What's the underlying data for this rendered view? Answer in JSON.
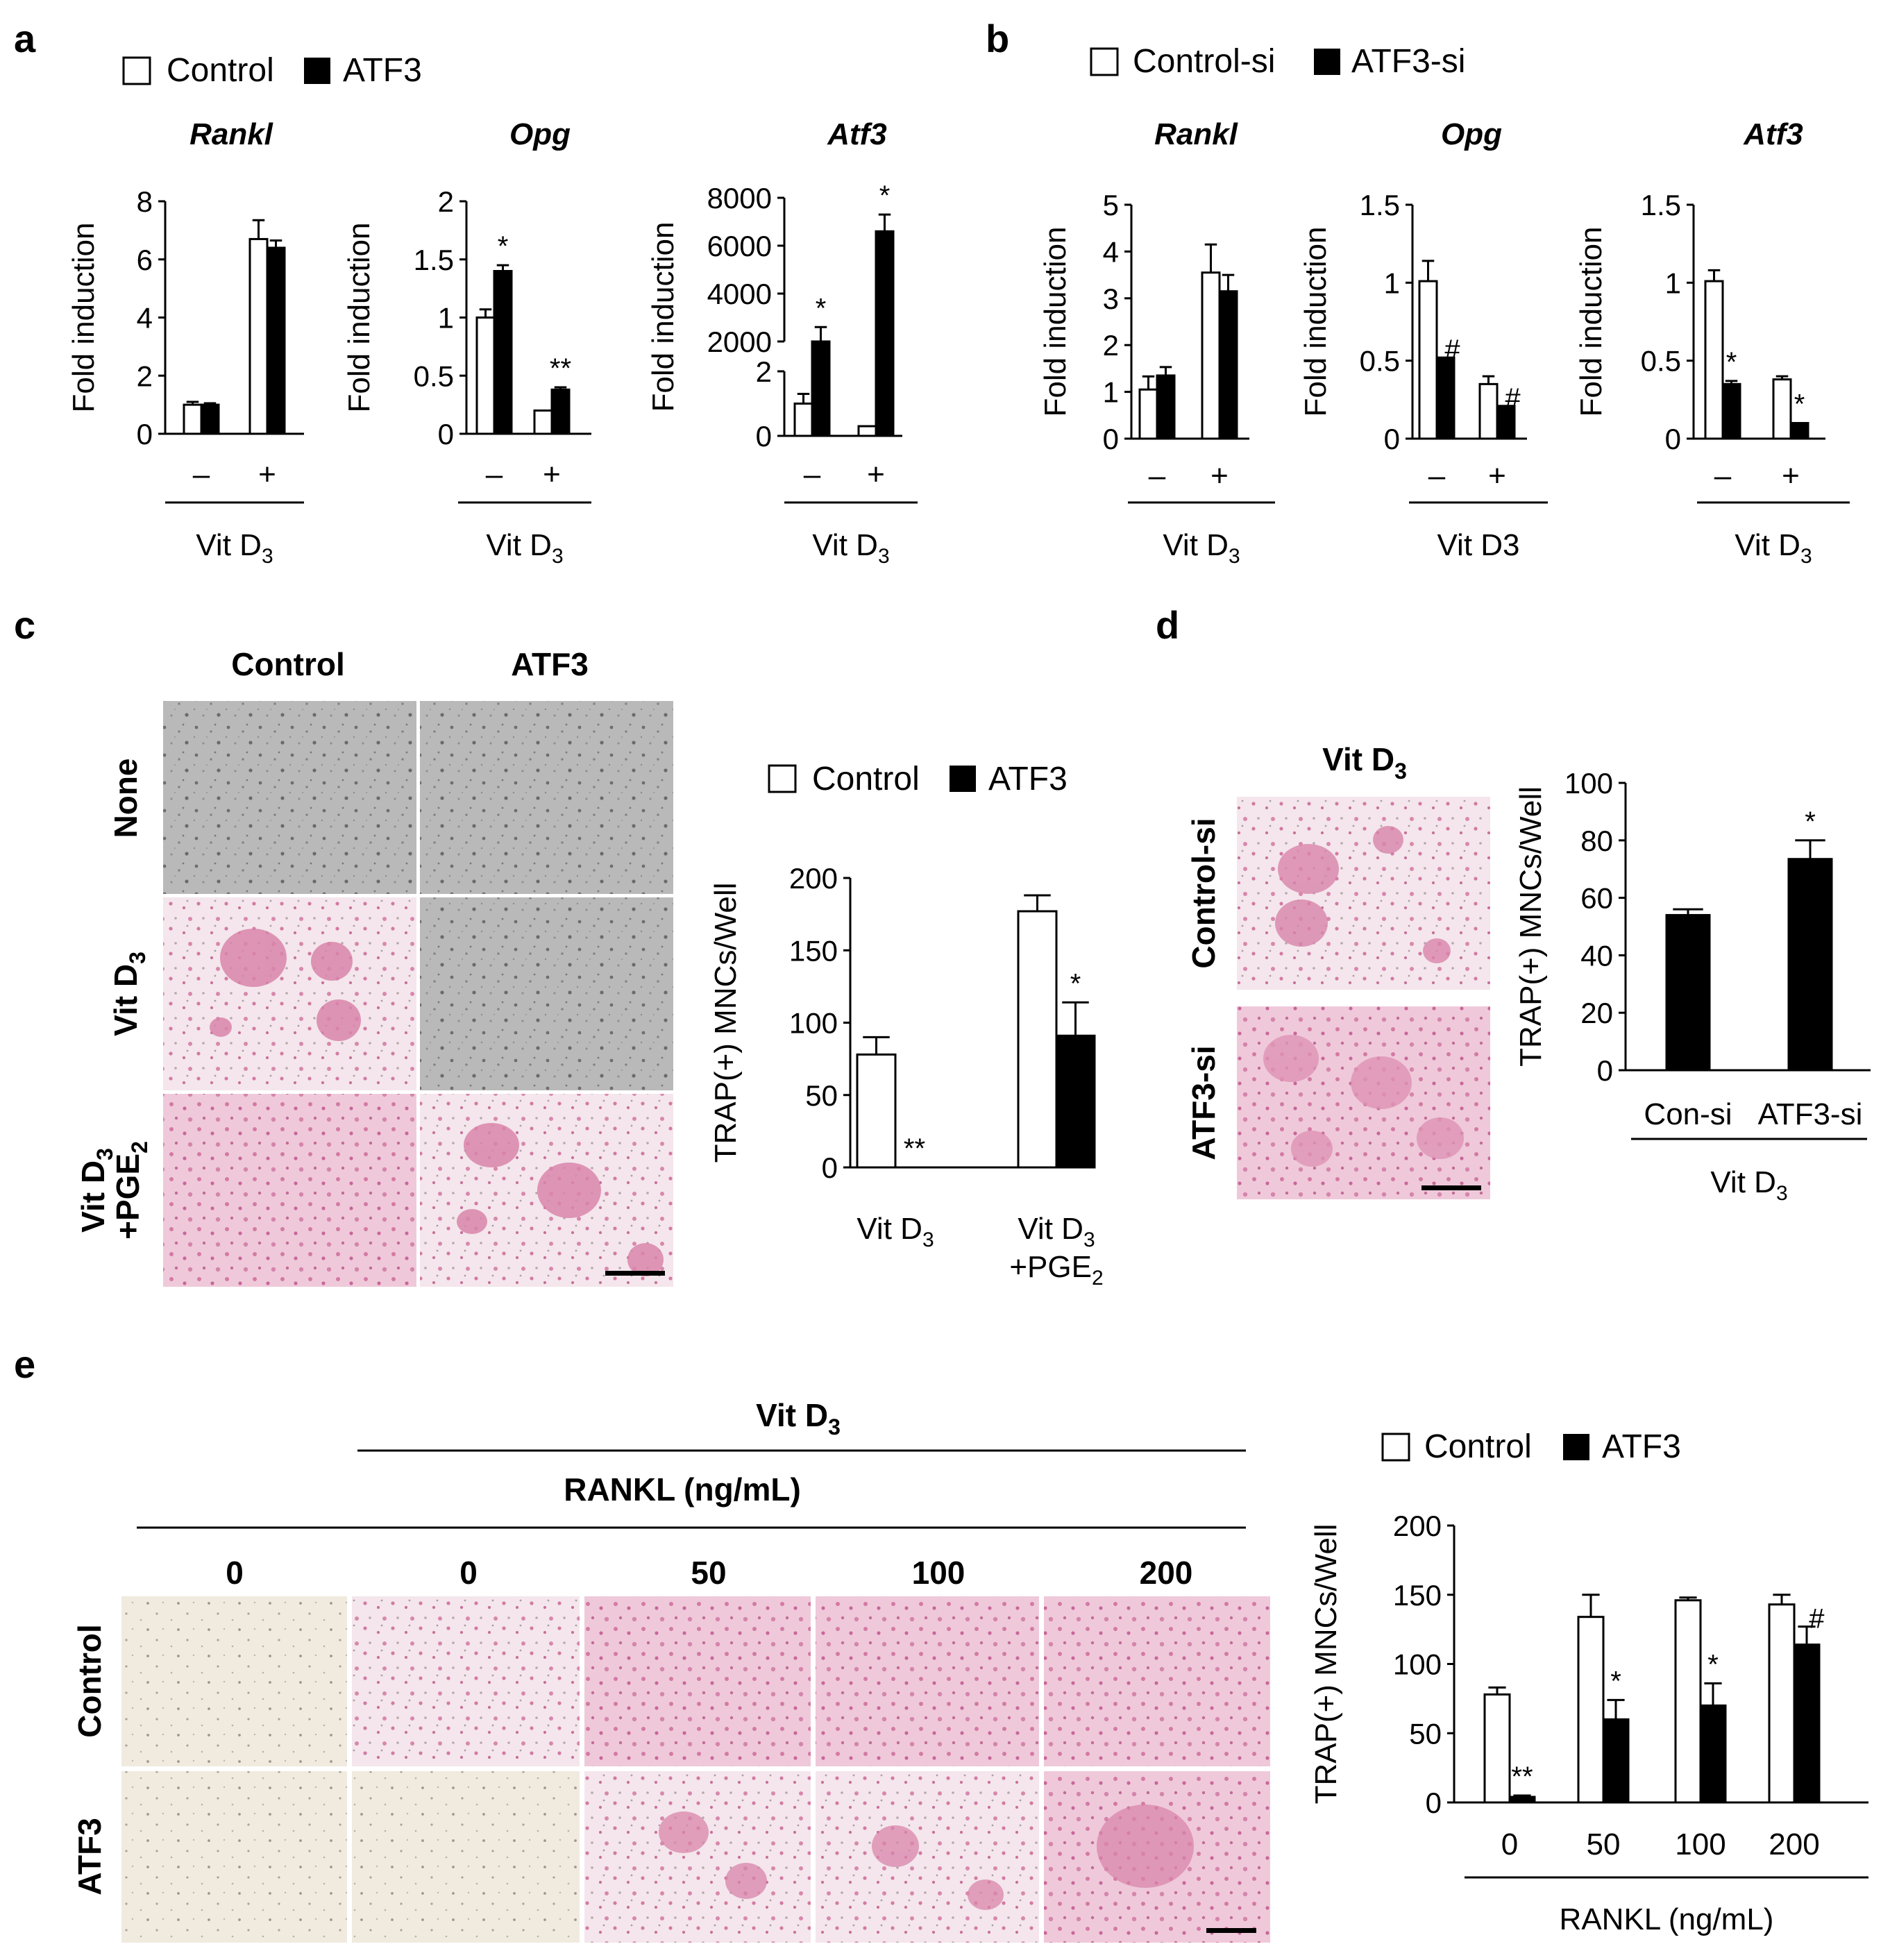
{
  "panels": {
    "a": {
      "label": "a",
      "legend": [
        {
          "name": "Control",
          "fill": "#ffffff"
        },
        {
          "name": "ATF3",
          "fill": "#000000"
        }
      ],
      "group_label": "Vit D",
      "group_sub": "3"
    },
    "b": {
      "label": "b",
      "legend": [
        {
          "name": "Control-si",
          "fill": "#ffffff"
        },
        {
          "name": "ATF3-si",
          "fill": "#000000"
        }
      ]
    },
    "c": {
      "label": "c",
      "col_headers": [
        "Control",
        "ATF3"
      ],
      "row_headers": [
        "None",
        "Vit D",
        "Vit D"
      ],
      "row_headers_sub": [
        "",
        "3",
        "3"
      ],
      "row3_line2": "+PGE",
      "row3_line2_sub": "2",
      "legend": [
        {
          "name": "Control",
          "fill": "#ffffff"
        },
        {
          "name": "ATF3",
          "fill": "#000000"
        }
      ]
    },
    "d": {
      "label": "d",
      "micro_title": "Vit D",
      "micro_title_sub": "3",
      "row_headers": [
        "Control-si",
        "ATF3-si"
      ]
    },
    "e": {
      "label": "e",
      "treatment": "Vit D",
      "treatment_sub": "3",
      "rankl_header": "RANKL (ng/mL)",
      "col_headers": [
        "0",
        "0",
        "50",
        "100",
        "200"
      ],
      "row_headers": [
        "Control",
        "ATF3"
      ],
      "legend": [
        {
          "name": "Control",
          "fill": "#ffffff"
        },
        {
          "name": "ATF3",
          "fill": "#000000"
        }
      ]
    }
  },
  "stain_colors": {
    "gray": "#a9a9a9",
    "trap_pink": "#d97aa6",
    "background_cream": "#f3ede2"
  },
  "chart_data": [
    {
      "id": "a-rankl",
      "type": "bar",
      "title": "Rankl",
      "ylabel": "Fold induction",
      "categories": [
        "–",
        "+"
      ],
      "group_label": "Vit D",
      "group_sub": "3",
      "ylim": [
        0,
        8
      ],
      "yticks": [
        "0",
        "2",
        "4",
        "6",
        "8"
      ],
      "series": [
        {
          "name": "Control",
          "values": [
            1.0,
            6.7
          ],
          "errors": [
            0.1,
            0.65
          ]
        },
        {
          "name": "ATF3",
          "values": [
            1.0,
            6.4
          ],
          "errors": [
            0.05,
            0.25
          ]
        }
      ],
      "annotations": [
        [
          "",
          ""
        ],
        [
          "",
          ""
        ]
      ]
    },
    {
      "id": "a-opg",
      "type": "bar",
      "title": "Opg",
      "ylabel": "Fold induction",
      "categories": [
        "–",
        "+"
      ],
      "group_label": "Vit D",
      "group_sub": "3",
      "ylim": [
        0,
        2
      ],
      "yticks": [
        "0",
        "0.5",
        "1",
        "1.5",
        "2"
      ],
      "series": [
        {
          "name": "Control",
          "values": [
            1.0,
            0.2
          ],
          "errors": [
            0.07,
            0.0
          ]
        },
        {
          "name": "ATF3",
          "values": [
            1.4,
            0.38
          ],
          "errors": [
            0.05,
            0.02
          ]
        }
      ],
      "annotations": [
        [
          "",
          ""
        ],
        [
          "*",
          "**"
        ]
      ]
    },
    {
      "id": "a-atf3",
      "type": "bar",
      "title": "Atf3",
      "ylabel": "Fold induction",
      "categories": [
        "–",
        "+"
      ],
      "group_label": "Vit D",
      "group_sub": "3",
      "broken_axis": true,
      "lower_ylim": [
        0,
        2
      ],
      "lower_yticks": [
        "0",
        "2"
      ],
      "upper_ylim": [
        2000,
        8000
      ],
      "upper_yticks": [
        "2000",
        "4000",
        "6000",
        "8000"
      ],
      "series": [
        {
          "name": "Control",
          "values": [
            1.0,
            0.3
          ],
          "errors": [
            0.3,
            0.0
          ]
        },
        {
          "name": "ATF3",
          "values": [
            2000,
            6600
          ],
          "errors": [
            600,
            700
          ]
        }
      ],
      "annotations": [
        [
          "",
          ""
        ],
        [
          "*",
          "*"
        ]
      ]
    },
    {
      "id": "b-rankl",
      "type": "bar",
      "title": "Rankl",
      "ylabel": "Fold induction",
      "categories": [
        "–",
        "+"
      ],
      "group_label": "Vit D",
      "group_sub": "3",
      "ylim": [
        0,
        5
      ],
      "yticks": [
        "0",
        "1",
        "2",
        "3",
        "4",
        "5"
      ],
      "series": [
        {
          "name": "Control-si",
          "values": [
            1.05,
            3.55
          ],
          "errors": [
            0.28,
            0.6
          ]
        },
        {
          "name": "ATF3-si",
          "values": [
            1.35,
            3.15
          ],
          "errors": [
            0.18,
            0.35
          ]
        }
      ],
      "annotations": [
        [
          "",
          ""
        ],
        [
          "",
          ""
        ]
      ]
    },
    {
      "id": "b-opg",
      "type": "bar",
      "title": "Opg",
      "ylabel": "Fold induction",
      "categories": [
        "–",
        "+"
      ],
      "group_label": "Vit D3",
      "group_sub": "",
      "ylim": [
        0,
        1.5
      ],
      "yticks": [
        "0",
        "0.5",
        "1",
        "1.5"
      ],
      "series": [
        {
          "name": "Control-si",
          "values": [
            1.01,
            0.35
          ],
          "errors": [
            0.13,
            0.05
          ]
        },
        {
          "name": "ATF3-si",
          "values": [
            0.52,
            0.21
          ],
          "errors": [
            0.0,
            0.0
          ]
        }
      ],
      "annotations": [
        [
          "",
          ""
        ],
        [
          "#",
          "#"
        ]
      ]
    },
    {
      "id": "b-atf3",
      "type": "bar",
      "title": "Atf3",
      "ylabel": "Fold induction",
      "categories": [
        "–",
        "+"
      ],
      "group_label": "Vit D",
      "group_sub": "3",
      "ylim": [
        0,
        1.5
      ],
      "yticks": [
        "0",
        "0.5",
        "1",
        "1.5"
      ],
      "series": [
        {
          "name": "Control-si",
          "values": [
            1.01,
            0.38
          ],
          "errors": [
            0.07,
            0.02
          ]
        },
        {
          "name": "ATF3-si",
          "values": [
            0.35,
            0.1
          ],
          "errors": [
            0.02,
            0.0
          ]
        }
      ],
      "annotations": [
        [
          "",
          ""
        ],
        [
          "*",
          "*"
        ]
      ]
    },
    {
      "id": "c-trap",
      "type": "bar",
      "ylabel": "TRAP(+) MNCs/Well",
      "categories": [
        "Vit D",
        "Vit D"
      ],
      "categories_sub": [
        "3",
        "3"
      ],
      "categories_line2": [
        "",
        "+PGE"
      ],
      "categories_line2_sub": [
        "",
        "2"
      ],
      "ylim": [
        0,
        200
      ],
      "yticks": [
        "0",
        "50",
        "100",
        "150",
        "200"
      ],
      "series": [
        {
          "name": "Control",
          "values": [
            78,
            177
          ],
          "errors": [
            12,
            11
          ]
        },
        {
          "name": "ATF3",
          "values": [
            0,
            91
          ],
          "errors": [
            0,
            23
          ]
        }
      ],
      "annotations": [
        [
          "",
          ""
        ],
        [
          "**",
          "*"
        ]
      ]
    },
    {
      "id": "d-trap",
      "type": "bar",
      "ylabel": "TRAP(+) MNCs/Well",
      "categories": [
        "Con-si",
        "ATF3-si"
      ],
      "group_label": "Vit D",
      "group_sub": "3",
      "ylim": [
        0,
        100
      ],
      "yticks": [
        "0",
        "20",
        "40",
        "60",
        "80",
        "100"
      ],
      "series": [
        {
          "name": "",
          "values": [
            54,
            73.5
          ],
          "errors": [
            2,
            6.5
          ]
        }
      ],
      "annotations": [
        [
          "",
          "*"
        ]
      ]
    },
    {
      "id": "e-trap",
      "type": "bar",
      "ylabel": "TRAP(+) MNCs/Well",
      "categories": [
        "0",
        "50",
        "100",
        "200"
      ],
      "group_label": "RANKL (ng/mL)",
      "ylim": [
        0,
        200
      ],
      "yticks": [
        "0",
        "50",
        "100",
        "150",
        "200"
      ],
      "series": [
        {
          "name": "Control",
          "values": [
            78,
            134,
            146,
            143
          ],
          "errors": [
            5,
            16,
            2,
            7
          ]
        },
        {
          "name": "ATF3",
          "values": [
            4,
            60,
            70,
            114
          ],
          "errors": [
            1,
            14,
            16,
            13
          ]
        }
      ],
      "annotations": [
        [
          "",
          "",
          "",
          ""
        ],
        [
          "**",
          "*",
          "*",
          "#"
        ]
      ]
    }
  ]
}
